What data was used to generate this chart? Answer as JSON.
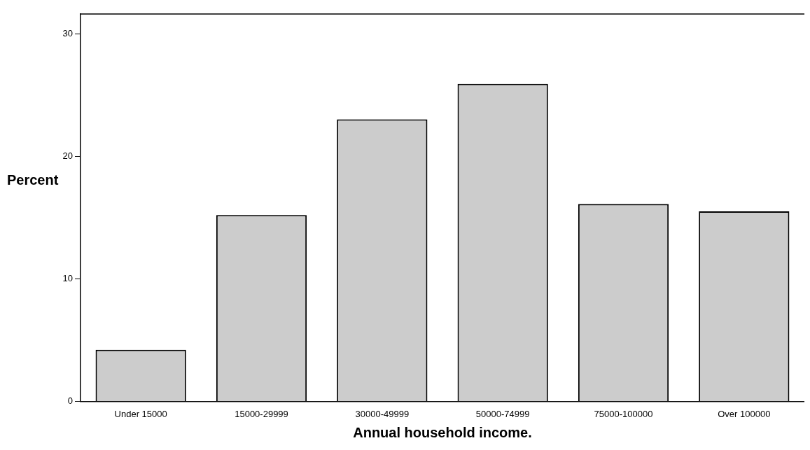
{
  "chart_data": {
    "type": "bar",
    "xlabel": "Annual household income.",
    "ylabel": "Percent",
    "categories": [
      "Under 15000",
      "15000-29999",
      "30000-49999",
      "50000-74999",
      "75000-100000",
      "Over 100000"
    ],
    "values": [
      4.2,
      15.2,
      23.0,
      25.9,
      16.1,
      15.5
    ],
    "color": "#cccccc",
    "ylim": [
      0,
      31.6
    ],
    "yticks": [
      0,
      10,
      20,
      30
    ],
    "grid": false,
    "legend": false
  }
}
